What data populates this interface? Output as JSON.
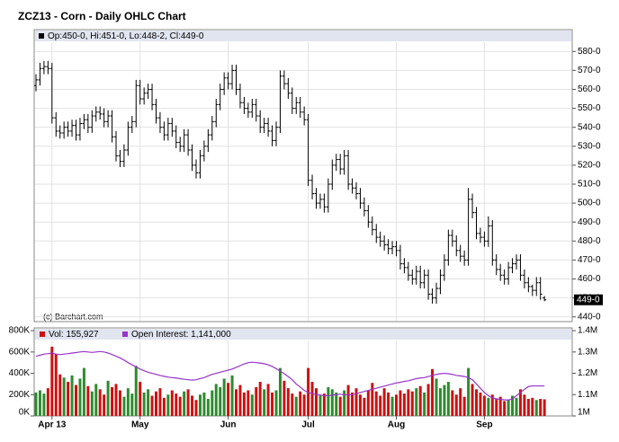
{
  "chart_data": [
    {
      "type": "ohlc",
      "title": "ZCZ13 - Corn - Daily OHLC Chart",
      "header": "Op:450-0, Hi:451-0, Lo:448-2, Cl:449-0",
      "copyright": "(c) Barchart.com",
      "last_label": "449-0",
      "color": "#000000",
      "grid": true,
      "ylim": [
        437.5,
        591.5
      ],
      "yticks": [
        {
          "value": 580,
          "label": "580-0"
        },
        {
          "value": 570,
          "label": "570-0"
        },
        {
          "value": 560,
          "label": "560-0"
        },
        {
          "value": 550,
          "label": "550-0"
        },
        {
          "value": 540,
          "label": "540-0"
        },
        {
          "value": 530,
          "label": "530-0"
        },
        {
          "value": 520,
          "label": "520-0"
        },
        {
          "value": 510,
          "label": "510-0"
        },
        {
          "value": 500,
          "label": "500-0"
        },
        {
          "value": 490,
          "label": "490-0"
        },
        {
          "value": 480,
          "label": "480-0"
        },
        {
          "value": 470,
          "label": "470-0"
        },
        {
          "value": 460,
          "label": "460-0"
        },
        {
          "value": 450,
          "label": "450-0"
        },
        {
          "value": 440,
          "label": "440-0"
        }
      ],
      "open": [
        562,
        565,
        571,
        572,
        571,
        545,
        538,
        537,
        540,
        538,
        541,
        536,
        542,
        544,
        540,
        546,
        548,
        547,
        543,
        546,
        535,
        525,
        522,
        528,
        540,
        543,
        562,
        555,
        558,
        560,
        552,
        545,
        540,
        536,
        542,
        538,
        532,
        530,
        536,
        528,
        520,
        516,
        525,
        530,
        536,
        543,
        552,
        560,
        566,
        563,
        570,
        560,
        553,
        550,
        548,
        552,
        546,
        540,
        542,
        538,
        533,
        540,
        567,
        563,
        558,
        550,
        553,
        548,
        544,
        512,
        505,
        500,
        502,
        498,
        510,
        520,
        523,
        518,
        525,
        510,
        508,
        505,
        500,
        496,
        490,
        486,
        482,
        480,
        478,
        476,
        477,
        475,
        468,
        466,
        462,
        460,
        464,
        458,
        462,
        452,
        450,
        455,
        462,
        470,
        483,
        480,
        475,
        472,
        470,
        502,
        495,
        484,
        482,
        480,
        488,
        470,
        465,
        462,
        460,
        466,
        468,
        470,
        462,
        458,
        456,
        454,
        458,
        450
      ],
      "high": [
        568,
        574,
        575,
        575,
        574,
        548,
        541,
        543,
        543,
        544,
        544,
        545,
        547,
        547,
        549,
        551,
        551,
        550,
        549,
        549,
        538,
        528,
        531,
        543,
        546,
        565,
        565,
        561,
        563,
        563,
        555,
        548,
        543,
        545,
        545,
        541,
        535,
        539,
        539,
        531,
        523,
        528,
        533,
        539,
        546,
        555,
        563,
        569,
        569,
        573,
        573,
        563,
        556,
        553,
        555,
        555,
        549,
        545,
        545,
        541,
        543,
        570,
        570,
        566,
        561,
        556,
        556,
        551,
        547,
        515,
        508,
        505,
        505,
        513,
        523,
        526,
        526,
        528,
        528,
        513,
        511,
        508,
        503,
        499,
        493,
        489,
        485,
        483,
        481,
        480,
        480,
        478,
        471,
        469,
        465,
        467,
        467,
        465,
        465,
        455,
        458,
        465,
        473,
        486,
        486,
        483,
        478,
        475,
        508,
        505,
        498,
        487,
        485,
        493,
        491,
        473,
        468,
        465,
        469,
        471,
        473,
        473,
        465,
        461,
        457,
        461,
        461,
        451
      ],
      "low": [
        559,
        562,
        568,
        568,
        542,
        535,
        534,
        534,
        535,
        535,
        533,
        533,
        539,
        537,
        537,
        543,
        544,
        540,
        540,
        532,
        522,
        519,
        519,
        525,
        537,
        540,
        552,
        552,
        555,
        549,
        542,
        537,
        533,
        533,
        535,
        529,
        527,
        527,
        525,
        517,
        513,
        513,
        522,
        527,
        533,
        540,
        549,
        557,
        560,
        560,
        557,
        550,
        547,
        545,
        545,
        543,
        537,
        537,
        535,
        530,
        530,
        537,
        560,
        555,
        547,
        547,
        545,
        541,
        509,
        502,
        497,
        497,
        495,
        495,
        507,
        517,
        515,
        515,
        507,
        505,
        502,
        497,
        493,
        487,
        483,
        479,
        477,
        475,
        473,
        473,
        472,
        465,
        463,
        459,
        457,
        457,
        455,
        455,
        449,
        447,
        447,
        452,
        459,
        467,
        477,
        472,
        469,
        467,
        467,
        492,
        481,
        479,
        477,
        477,
        467,
        462,
        459,
        457,
        457,
        463,
        465,
        459,
        455,
        453,
        451,
        451,
        449,
        448.25
      ],
      "close": [
        565,
        571,
        572,
        571,
        545,
        538,
        537,
        540,
        538,
        541,
        536,
        542,
        544,
        540,
        546,
        548,
        547,
        543,
        546,
        535,
        525,
        522,
        528,
        540,
        543,
        562,
        555,
        558,
        560,
        552,
        545,
        540,
        536,
        542,
        538,
        532,
        530,
        536,
        528,
        520,
        516,
        525,
        530,
        536,
        543,
        552,
        560,
        566,
        563,
        570,
        560,
        553,
        550,
        548,
        552,
        546,
        540,
        542,
        538,
        533,
        540,
        567,
        563,
        558,
        550,
        553,
        548,
        544,
        512,
        505,
        500,
        502,
        498,
        510,
        520,
        523,
        518,
        525,
        510,
        508,
        505,
        500,
        496,
        490,
        486,
        482,
        480,
        478,
        476,
        477,
        475,
        468,
        466,
        462,
        460,
        464,
        458,
        462,
        452,
        450,
        455,
        462,
        470,
        483,
        480,
        475,
        472,
        470,
        502,
        495,
        484,
        482,
        480,
        488,
        470,
        465,
        462,
        460,
        466,
        468,
        470,
        462,
        458,
        456,
        454,
        458,
        452,
        449
      ]
    },
    {
      "type": "bar",
      "up_color": "#2e8b2e",
      "down_color": "#cc1111",
      "categories": [
        null,
        null,
        null,
        null,
        "Apr 13",
        null,
        null,
        null,
        null,
        null,
        null,
        null,
        null,
        null,
        null,
        null,
        null,
        null,
        null,
        null,
        null,
        null,
        null,
        null,
        null,
        null,
        "May",
        null,
        null,
        null,
        null,
        null,
        null,
        null,
        null,
        null,
        null,
        null,
        null,
        null,
        null,
        null,
        null,
        null,
        null,
        null,
        null,
        null,
        "Jun",
        null,
        null,
        null,
        null,
        null,
        null,
        null,
        null,
        null,
        null,
        null,
        null,
        null,
        null,
        null,
        null,
        null,
        null,
        null,
        "Jul",
        null,
        null,
        null,
        null,
        null,
        null,
        null,
        null,
        null,
        null,
        null,
        null,
        null,
        null,
        null,
        null,
        null,
        null,
        null,
        null,
        null,
        "Aug",
        null,
        null,
        null,
        null,
        null,
        null,
        null,
        null,
        null,
        null,
        null,
        null,
        null,
        null,
        null,
        null,
        null,
        null,
        null,
        null,
        null,
        "Sep",
        null,
        null,
        null,
        null,
        null,
        null,
        null,
        null,
        null,
        null,
        null,
        null,
        null,
        null,
        null
      ],
      "ylim": [
        0,
        826000
      ],
      "yticks": [
        {
          "value": 0,
          "label": "0K"
        },
        {
          "value": 200000,
          "label": "200K"
        },
        {
          "value": 400000,
          "label": "400K"
        },
        {
          "value": 600000,
          "label": "600K"
        },
        {
          "value": 800000,
          "label": "800K"
        }
      ],
      "y2lim": [
        1000000,
        1413000
      ],
      "y2ticks": [
        {
          "value": 1000000,
          "label": "1M"
        },
        {
          "value": 1100000,
          "label": "1.1M"
        },
        {
          "value": 1200000,
          "label": "1.2M"
        },
        {
          "value": 1300000,
          "label": "1.3M"
        },
        {
          "value": 1400000,
          "label": "1.4M"
        }
      ],
      "series": [
        {
          "name": "Vol: 155,927",
          "color": "#cc1111",
          "values": [
            220000,
            240000,
            210000,
            260000,
            650000,
            580000,
            390000,
            360000,
            320000,
            380000,
            290000,
            350000,
            450000,
            280000,
            230000,
            300000,
            250000,
            200000,
            330000,
            270000,
            300000,
            240000,
            180000,
            260000,
            210000,
            470000,
            320000,
            220000,
            250000,
            190000,
            230000,
            260000,
            170000,
            200000,
            240000,
            210000,
            180000,
            230000,
            250000,
            190000,
            150000,
            200000,
            220000,
            160000,
            240000,
            300000,
            270000,
            350000,
            310000,
            380000,
            250000,
            290000,
            220000,
            240000,
            200000,
            270000,
            320000,
            250000,
            300000,
            220000,
            240000,
            450000,
            330000,
            260000,
            210000,
            180000,
            230000,
            200000,
            450000,
            320000,
            260000,
            190000,
            210000,
            270000,
            250000,
            220000,
            180000,
            240000,
            290000,
            220000,
            260000,
            200000,
            170000,
            240000,
            310000,
            230000,
            190000,
            260000,
            220000,
            180000,
            200000,
            240000,
            210000,
            250000,
            230000,
            260000,
            280000,
            220000,
            300000,
            440000,
            350000,
            260000,
            290000,
            320000,
            240000,
            200000,
            260000,
            180000,
            450000,
            300000,
            250000,
            220000,
            190000,
            170000,
            200000,
            160000,
            180000,
            140000,
            150000,
            190000,
            170000,
            250000,
            200000,
            160000,
            170000,
            150000,
            160000,
            155927
          ]
        },
        {
          "name": "Open Interest: 1,141,000",
          "color": "#9933cc",
          "axis": "y2",
          "values": [
            1280000,
            1285000,
            1290000,
            1292000,
            1295000,
            1290000,
            1288000,
            1290000,
            1292000,
            1295000,
            1297000,
            1300000,
            1302000,
            1300000,
            1298000,
            1300000,
            1302000,
            1300000,
            1295000,
            1288000,
            1280000,
            1272000,
            1262000,
            1250000,
            1240000,
            1230000,
            1220000,
            1212000,
            1205000,
            1200000,
            1195000,
            1190000,
            1186000,
            1182000,
            1180000,
            1178000,
            1175000,
            1172000,
            1170000,
            1168000,
            1170000,
            1175000,
            1180000,
            1188000,
            1195000,
            1200000,
            1205000,
            1210000,
            1215000,
            1220000,
            1228000,
            1236000,
            1244000,
            1250000,
            1252000,
            1250000,
            1248000,
            1245000,
            1240000,
            1232000,
            1222000,
            1210000,
            1198000,
            1185000,
            1170000,
            1150000,
            1135000,
            1120000,
            1110000,
            1105000,
            1100000,
            1098000,
            1095000,
            1095000,
            1098000,
            1100000,
            1102000,
            1100000,
            1098000,
            1100000,
            1105000,
            1110000,
            1115000,
            1120000,
            1125000,
            1130000,
            1135000,
            1140000,
            1145000,
            1150000,
            1155000,
            1158000,
            1162000,
            1165000,
            1170000,
            1175000,
            1178000,
            1180000,
            1185000,
            1190000,
            1195000,
            1198000,
            1200000,
            1198000,
            1195000,
            1190000,
            1188000,
            1185000,
            1180000,
            1170000,
            1150000,
            1130000,
            1110000,
            1095000,
            1085000,
            1080000,
            1078000,
            1076000,
            1075000,
            1080000,
            1095000,
            1110000,
            1125000,
            1138000,
            1141000,
            1141000,
            1141000,
            1141000
          ]
        }
      ]
    }
  ]
}
